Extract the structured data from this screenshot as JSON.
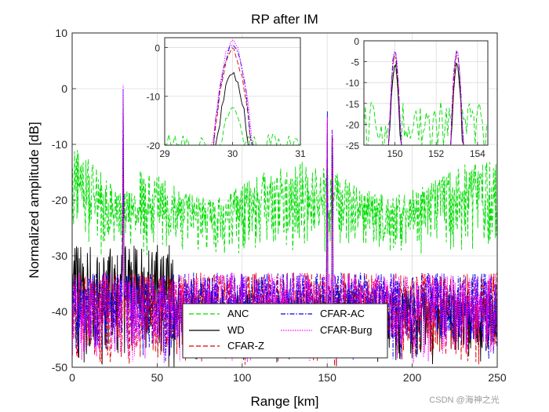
{
  "chart_data": {
    "type": "line",
    "title": "RP after IM",
    "xlabel": "Range [km]",
    "ylabel": "Normalized amplitude [dB]",
    "xlim": [
      0,
      250
    ],
    "ylim": [
      -50,
      10
    ],
    "xticks": [
      0,
      50,
      100,
      150,
      200,
      250
    ],
    "yticks": [
      10,
      0,
      -10,
      -20,
      -30,
      -40,
      -50
    ],
    "grid": true,
    "legend_position": "bottom-center",
    "series": [
      {
        "name": "ANC",
        "color": "#00dd00",
        "style": "dashed"
      },
      {
        "name": "WD",
        "color": "#000000",
        "style": "solid"
      },
      {
        "name": "CFAR-Z",
        "color": "#e00000",
        "style": "dashed"
      },
      {
        "name": "CFAR-AC",
        "color": "#0000ee",
        "style": "dashdot"
      },
      {
        "name": "CFAR-Burg",
        "color": "#ff00ff",
        "style": "dotted"
      }
    ],
    "targets": [
      {
        "range_km": 30,
        "peak_db": {
          "ANC": -12,
          "WD": -5,
          "CFAR-Z": 0,
          "CFAR-AC": 1,
          "CFAR-Burg": 2
        }
      },
      {
        "range_km": 150,
        "peak_db": {
          "ANC": -5,
          "WD": -5,
          "CFAR-Z": -3,
          "CFAR-AC": -2,
          "CFAR-Burg": -2
        }
      },
      {
        "range_km": 153,
        "peak_db": {
          "ANC": -5,
          "WD": -5,
          "CFAR-Z": -3,
          "CFAR-AC": -2,
          "CFAR-Burg": -2
        }
      }
    ],
    "noise_floor_db": {
      "ANC": [
        -30,
        -10
      ],
      "WD": [
        -50,
        -28
      ],
      "CFAR-Z": [
        -50,
        -33
      ],
      "CFAR-AC": [
        -50,
        -33
      ],
      "CFAR-Burg": [
        -50,
        -33
      ]
    },
    "insets": [
      {
        "name": "zoom-near",
        "xlim": [
          29,
          31
        ],
        "ylim": [
          -20,
          2
        ],
        "xticks": [
          29,
          30,
          31
        ],
        "yticks": [
          0,
          -10,
          -20
        ]
      },
      {
        "name": "zoom-far",
        "xlim": [
          148.5,
          154.5
        ],
        "ylim": [
          -25,
          0
        ],
        "xticks": [
          150,
          152,
          154
        ],
        "yticks": [
          0,
          -5,
          -10,
          -15,
          -20,
          -25
        ]
      }
    ]
  },
  "watermark": "CSDN @海神之光"
}
